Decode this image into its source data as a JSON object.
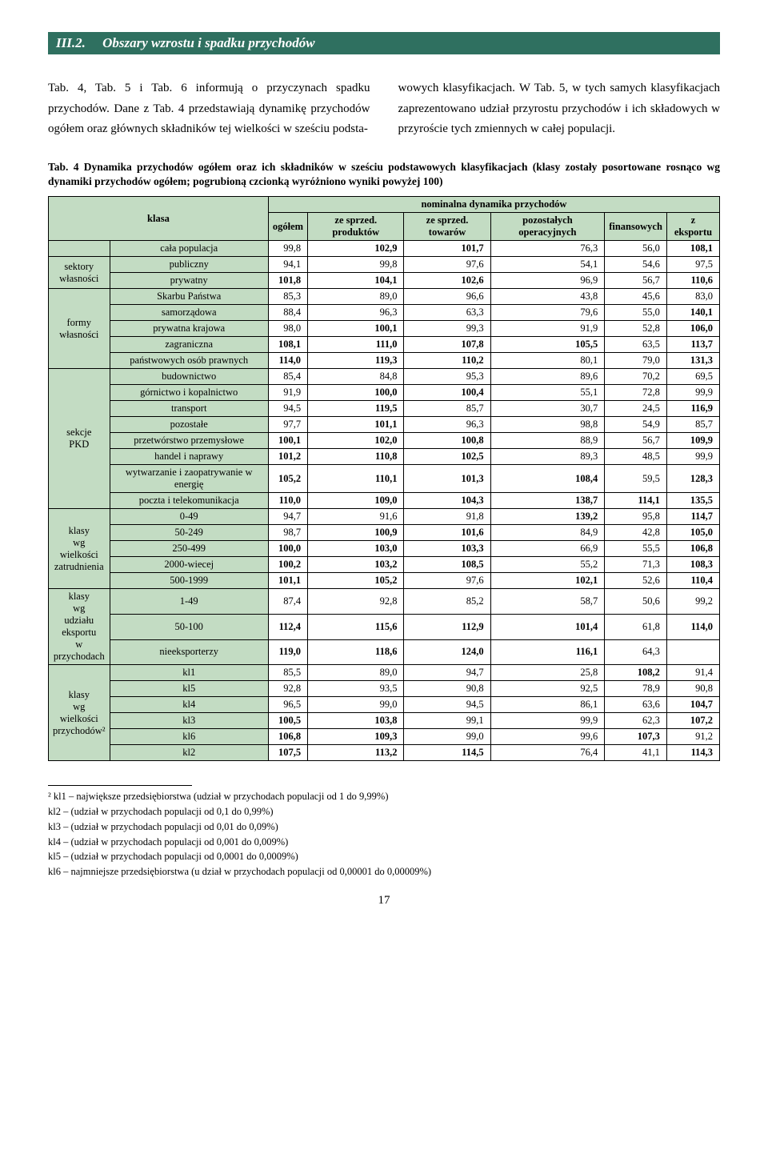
{
  "section": {
    "number": "III.2.",
    "title": "Obszary wzrostu i spadku przychodów"
  },
  "paragraph": {
    "left": "Tab. 4, Tab. 5 i Tab. 6 informują o przyczynach spadku przychodów. Dane z Tab. 4 przedstawiają dynamikę przychodów ogółem oraz głównych składników tej wielkości w sześciu podsta-",
    "right": "wowych klasyfikacjach. W Tab. 5, w tych samych klasyfikacjach zaprezentowano udział przyrostu przychodów i ich składowych w przyroście tych zmiennych w całej populacji."
  },
  "table": {
    "caption": "Tab. 4 Dynamika przychodów ogółem oraz ich składników w sześciu podstawowych klasyfikacjach (klasy zostały posortowane rosnąco wg dynamiki przychodów ogółem; pogrubioną czcionką wyróżniono wyniki powyżej 100)",
    "header": {
      "klasa": "klasa",
      "group": "nominalna dynamika przychodów",
      "cols": [
        "ogółem",
        "ze sprzed. produktów",
        "ze sprzed. towarów",
        "pozostałych operacyjnych",
        "finansowych",
        "z eksportu"
      ]
    },
    "groups": [
      {
        "label": "",
        "rows": [
          {
            "klasa": "cała populacja",
            "v": [
              "99,8",
              "102,9",
              "101,7",
              "76,3",
              "56,0",
              "108,1"
            ],
            "bold": [
              0,
              1,
              1,
              0,
              0,
              1
            ]
          }
        ]
      },
      {
        "label": "sektory własności",
        "rows": [
          {
            "klasa": "publiczny",
            "v": [
              "94,1",
              "99,8",
              "97,6",
              "54,1",
              "54,6",
              "97,5"
            ],
            "bold": [
              0,
              0,
              0,
              0,
              0,
              0
            ]
          },
          {
            "klasa": "prywatny",
            "v": [
              "101,8",
              "104,1",
              "102,6",
              "96,9",
              "56,7",
              "110,6"
            ],
            "bold": [
              1,
              1,
              1,
              0,
              0,
              1
            ]
          }
        ]
      },
      {
        "label": "formy własności",
        "rows": [
          {
            "klasa": "Skarbu Państwa",
            "v": [
              "85,3",
              "89,0",
              "96,6",
              "43,8",
              "45,6",
              "83,0"
            ],
            "bold": [
              0,
              0,
              0,
              0,
              0,
              0
            ]
          },
          {
            "klasa": "samorządowa",
            "v": [
              "88,4",
              "96,3",
              "63,3",
              "79,6",
              "55,0",
              "140,1"
            ],
            "bold": [
              0,
              0,
              0,
              0,
              0,
              1
            ]
          },
          {
            "klasa": "prywatna krajowa",
            "v": [
              "98,0",
              "100,1",
              "99,3",
              "91,9",
              "52,8",
              "106,0"
            ],
            "bold": [
              0,
              1,
              0,
              0,
              0,
              1
            ]
          },
          {
            "klasa": "zagraniczna",
            "v": [
              "108,1",
              "111,0",
              "107,8",
              "105,5",
              "63,5",
              "113,7"
            ],
            "bold": [
              1,
              1,
              1,
              1,
              0,
              1
            ]
          },
          {
            "klasa": "państwowych osób prawnych",
            "v": [
              "114,0",
              "119,3",
              "110,2",
              "80,1",
              "79,0",
              "131,3"
            ],
            "bold": [
              1,
              1,
              1,
              0,
              0,
              1
            ]
          }
        ]
      },
      {
        "label": "sekcje PKD",
        "rows": [
          {
            "klasa": "budownictwo",
            "v": [
              "85,4",
              "84,8",
              "95,3",
              "89,6",
              "70,2",
              "69,5"
            ],
            "bold": [
              0,
              0,
              0,
              0,
              0,
              0
            ]
          },
          {
            "klasa": "górnictwo i kopalnictwo",
            "v": [
              "91,9",
              "100,0",
              "100,4",
              "55,1",
              "72,8",
              "99,9"
            ],
            "bold": [
              0,
              1,
              1,
              0,
              0,
              0
            ]
          },
          {
            "klasa": "transport",
            "v": [
              "94,5",
              "119,5",
              "85,7",
              "30,7",
              "24,5",
              "116,9"
            ],
            "bold": [
              0,
              1,
              0,
              0,
              0,
              1
            ]
          },
          {
            "klasa": "pozostałe",
            "v": [
              "97,7",
              "101,1",
              "96,3",
              "98,8",
              "54,9",
              "85,7"
            ],
            "bold": [
              0,
              1,
              0,
              0,
              0,
              0
            ]
          },
          {
            "klasa": "przetwórstwo przemysłowe",
            "v": [
              "100,1",
              "102,0",
              "100,8",
              "88,9",
              "56,7",
              "109,9"
            ],
            "bold": [
              1,
              1,
              1,
              0,
              0,
              1
            ]
          },
          {
            "klasa": "handel i naprawy",
            "v": [
              "101,2",
              "110,8",
              "102,5",
              "89,3",
              "48,5",
              "99,9"
            ],
            "bold": [
              1,
              1,
              1,
              0,
              0,
              0
            ]
          },
          {
            "klasa": "wytwarzanie i zaopatrywanie w energię",
            "v": [
              "105,2",
              "110,1",
              "101,3",
              "108,4",
              "59,5",
              "128,3"
            ],
            "bold": [
              1,
              1,
              1,
              1,
              0,
              1
            ]
          },
          {
            "klasa": "poczta i telekomunikacja",
            "v": [
              "110,0",
              "109,0",
              "104,3",
              "138,7",
              "114,1",
              "135,5"
            ],
            "bold": [
              1,
              1,
              1,
              1,
              1,
              1
            ]
          }
        ]
      },
      {
        "label": "klasy wg wielkości zatrudnienia",
        "rows": [
          {
            "klasa": "0-49",
            "v": [
              "94,7",
              "91,6",
              "91,8",
              "139,2",
              "95,8",
              "114,7"
            ],
            "bold": [
              0,
              0,
              0,
              1,
              0,
              1
            ]
          },
          {
            "klasa": "50-249",
            "v": [
              "98,7",
              "100,9",
              "101,6",
              "84,9",
              "42,8",
              "105,0"
            ],
            "bold": [
              0,
              1,
              1,
              0,
              0,
              1
            ]
          },
          {
            "klasa": "250-499",
            "v": [
              "100,0",
              "103,0",
              "103,3",
              "66,9",
              "55,5",
              "106,8"
            ],
            "bold": [
              1,
              1,
              1,
              0,
              0,
              1
            ]
          },
          {
            "klasa": "2000-wiecej",
            "v": [
              "100,2",
              "103,2",
              "108,5",
              "55,2",
              "71,3",
              "108,3"
            ],
            "bold": [
              1,
              1,
              1,
              0,
              0,
              1
            ]
          },
          {
            "klasa": "500-1999",
            "v": [
              "101,1",
              "105,2",
              "97,6",
              "102,1",
              "52,6",
              "110,4"
            ],
            "bold": [
              1,
              1,
              0,
              1,
              0,
              1
            ]
          }
        ]
      },
      {
        "label": "klasy wg udziału eksportu w przychodach",
        "rows": [
          {
            "klasa": "1-49",
            "v": [
              "87,4",
              "92,8",
              "85,2",
              "58,7",
              "50,6",
              "99,2"
            ],
            "bold": [
              0,
              0,
              0,
              0,
              0,
              0
            ]
          },
          {
            "klasa": "50-100",
            "v": [
              "112,4",
              "115,6",
              "112,9",
              "101,4",
              "61,8",
              "114,0"
            ],
            "bold": [
              1,
              1,
              1,
              1,
              0,
              1
            ]
          },
          {
            "klasa": "nieeksporterzy",
            "v": [
              "119,0",
              "118,6",
              "124,0",
              "116,1",
              "64,3",
              ""
            ],
            "bold": [
              1,
              1,
              1,
              1,
              0,
              0
            ]
          }
        ]
      },
      {
        "label": "klasy wg wielkości przychodów²",
        "rows": [
          {
            "klasa": "kl1",
            "v": [
              "85,5",
              "89,0",
              "94,7",
              "25,8",
              "108,2",
              "91,4"
            ],
            "bold": [
              0,
              0,
              0,
              0,
              1,
              0
            ]
          },
          {
            "klasa": "kl5",
            "v": [
              "92,8",
              "93,5",
              "90,8",
              "92,5",
              "78,9",
              "90,8"
            ],
            "bold": [
              0,
              0,
              0,
              0,
              0,
              0
            ]
          },
          {
            "klasa": "kl4",
            "v": [
              "96,5",
              "99,0",
              "94,5",
              "86,1",
              "63,6",
              "104,7"
            ],
            "bold": [
              0,
              0,
              0,
              0,
              0,
              1
            ]
          },
          {
            "klasa": "kl3",
            "v": [
              "100,5",
              "103,8",
              "99,1",
              "99,9",
              "62,3",
              "107,2"
            ],
            "bold": [
              1,
              1,
              0,
              0,
              0,
              1
            ]
          },
          {
            "klasa": "kl6",
            "v": [
              "106,8",
              "109,3",
              "99,0",
              "99,6",
              "107,3",
              "91,2"
            ],
            "bold": [
              1,
              1,
              0,
              0,
              1,
              0
            ]
          },
          {
            "klasa": "kl2",
            "v": [
              "107,5",
              "113,2",
              "114,5",
              "76,4",
              "41,1",
              "114,3"
            ],
            "bold": [
              1,
              1,
              1,
              0,
              0,
              1
            ]
          }
        ]
      }
    ]
  },
  "footnotes": {
    "lines": [
      "² kl1 – największe przedsiębiorstwa (udział w przychodach populacji od 1 do 9,99%)",
      "kl2 – (udział w przychodach populacji od 0,1 do 0,99%)",
      "kl3 – (udział w przychodach populacji od 0,01 do 0,09%)",
      "kl4 – (udział w przychodach populacji od 0,001 do 0,009%)",
      "kl5 – (udział w przychodach populacji od 0,0001 do 0,0009%)",
      "kl6 – najmniejsze przedsiębiorstwa (u dział w przychodach populacji od 0,00001 do 0,00009%)"
    ]
  },
  "page": "17",
  "style": {
    "headerBg": "#2f7060",
    "headerFg": "#ffffff",
    "cellBg": "#c3dcc3",
    "border": "#000000"
  }
}
